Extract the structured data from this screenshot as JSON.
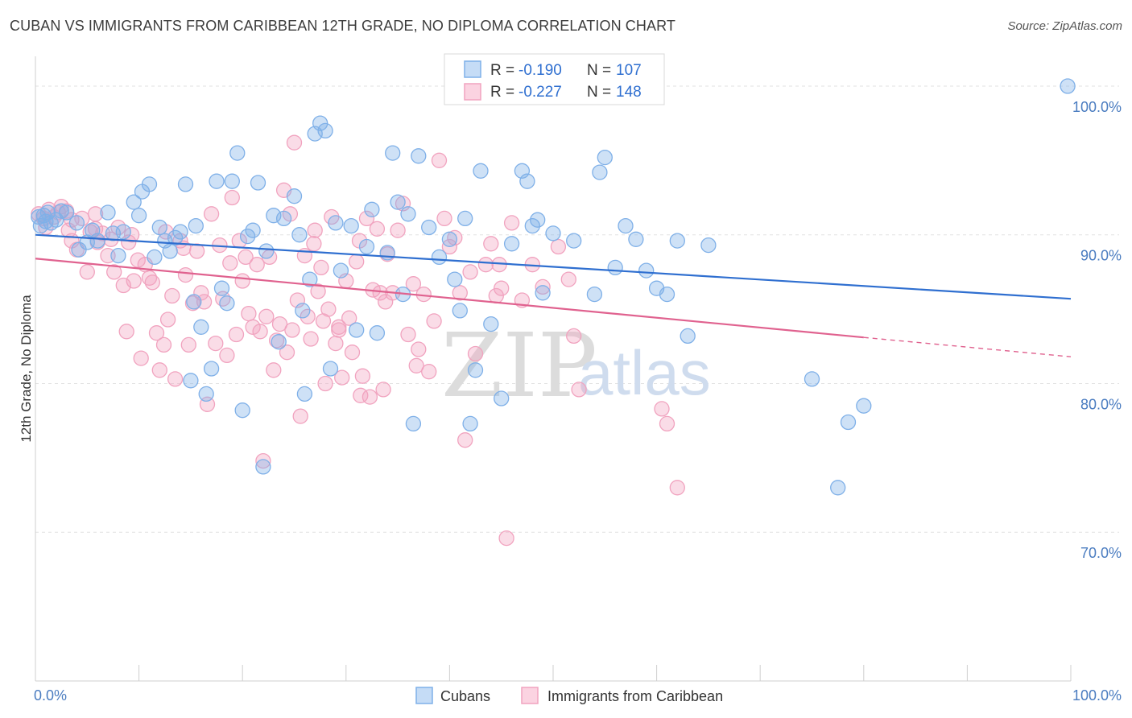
{
  "title": "CUBAN VS IMMIGRANTS FROM CARIBBEAN 12TH GRADE, NO DIPLOMA CORRELATION CHART",
  "source": "Source: ZipAtlas.com",
  "watermark": {
    "zip": "ZIP",
    "atlas": "atlas"
  },
  "colors": {
    "cubans": "#7fb0e8",
    "cubans_line": "#2f6fd0",
    "caribbean": "#f1a3bf",
    "caribbean_line": "#e0628f",
    "axis_text": "#4a7cc0"
  },
  "chart_data": {
    "type": "scatter",
    "xlabel": "",
    "ylabel": "12th Grade, No Diploma",
    "xlim": [
      0,
      100
    ],
    "ylim": [
      60,
      102
    ],
    "x_tick_labels": [
      {
        "value": 0,
        "label": "0.0%"
      },
      {
        "value": 100,
        "label": "100.0%"
      }
    ],
    "y_ticks": [
      {
        "value": 70,
        "label": "70.0%"
      },
      {
        "value": 80,
        "label": "80.0%"
      },
      {
        "value": 90,
        "label": "90.0%"
      },
      {
        "value": 100,
        "label": "100.0%"
      }
    ],
    "grid": true,
    "legend_stats": [
      {
        "r_label": "R = ",
        "r_value": "-0.190",
        "n_label": "N = ",
        "n_value": "107"
      },
      {
        "r_label": "R = ",
        "r_value": "-0.227",
        "n_label": "N = ",
        "n_value": "148"
      }
    ],
    "series": [
      {
        "name": "Cubans",
        "trend": {
          "x": [
            0,
            100
          ],
          "y": [
            90.0,
            85.7
          ]
        },
        "points": [
          [
            0.3,
            91.2
          ],
          [
            0.5,
            90.6
          ],
          [
            0.8,
            91.3
          ],
          [
            1.0,
            90.9
          ],
          [
            1.2,
            91.5
          ],
          [
            1.5,
            90.8
          ],
          [
            2.0,
            91.0
          ],
          [
            2.5,
            91.6
          ],
          [
            3.0,
            91.5
          ],
          [
            4.0,
            90.8
          ],
          [
            4.2,
            89.0
          ],
          [
            5.0,
            89.5
          ],
          [
            5.5,
            90.3
          ],
          [
            6.0,
            89.6
          ],
          [
            7.0,
            91.5
          ],
          [
            7.5,
            90.1
          ],
          [
            8.0,
            88.6
          ],
          [
            8.5,
            90.2
          ],
          [
            9.5,
            92.2
          ],
          [
            10.0,
            91.3
          ],
          [
            10.3,
            92.9
          ],
          [
            11.0,
            93.4
          ],
          [
            11.5,
            88.5
          ],
          [
            12.0,
            90.5
          ],
          [
            12.5,
            89.6
          ],
          [
            13.0,
            88.9
          ],
          [
            13.5,
            89.8
          ],
          [
            14.0,
            90.2
          ],
          [
            14.5,
            93.4
          ],
          [
            15.0,
            80.2
          ],
          [
            15.5,
            90.6
          ],
          [
            16.0,
            83.8
          ],
          [
            16.5,
            79.3
          ],
          [
            17.0,
            81.0
          ],
          [
            17.5,
            93.6
          ],
          [
            18.0,
            86.4
          ],
          [
            18.5,
            85.4
          ],
          [
            19.0,
            93.6
          ],
          [
            19.5,
            95.5
          ],
          [
            20.0,
            78.2
          ],
          [
            21.0,
            90.3
          ],
          [
            21.5,
            93.5
          ],
          [
            22.0,
            74.4
          ],
          [
            22.3,
            88.9
          ],
          [
            23.0,
            91.3
          ],
          [
            23.5,
            82.8
          ],
          [
            24.0,
            91.1
          ],
          [
            25.0,
            92.6
          ],
          [
            25.5,
            90.0
          ],
          [
            26.0,
            79.3
          ],
          [
            26.5,
            87.0
          ],
          [
            27.0,
            96.8
          ],
          [
            27.5,
            97.5
          ],
          [
            28.0,
            97.0
          ],
          [
            28.5,
            81.0
          ],
          [
            29.0,
            90.8
          ],
          [
            29.5,
            87.6
          ],
          [
            30.5,
            90.6
          ],
          [
            31.0,
            83.6
          ],
          [
            32.0,
            89.2
          ],
          [
            32.5,
            91.7
          ],
          [
            33.0,
            83.4
          ],
          [
            34.0,
            88.8
          ],
          [
            34.5,
            95.5
          ],
          [
            35.0,
            92.2
          ],
          [
            35.5,
            86.0
          ],
          [
            36.0,
            91.4
          ],
          [
            36.5,
            77.3
          ],
          [
            37.0,
            95.3
          ],
          [
            38.0,
            90.5
          ],
          [
            39.0,
            88.5
          ],
          [
            40.0,
            89.7
          ],
          [
            40.5,
            87.0
          ],
          [
            41.0,
            84.9
          ],
          [
            42.0,
            77.3
          ],
          [
            42.5,
            80.9
          ],
          [
            43.0,
            94.3
          ],
          [
            44.0,
            84.0
          ],
          [
            45.0,
            79.0
          ],
          [
            46.0,
            89.4
          ],
          [
            47.0,
            94.3
          ],
          [
            47.5,
            93.6
          ],
          [
            48.0,
            90.6
          ],
          [
            48.5,
            91.0
          ],
          [
            49.0,
            86.1
          ],
          [
            50.0,
            90.1
          ],
          [
            52.0,
            89.6
          ],
          [
            54.0,
            86.0
          ],
          [
            55.0,
            95.2
          ],
          [
            54.5,
            94.2
          ],
          [
            56.0,
            87.8
          ],
          [
            57.0,
            90.6
          ],
          [
            58.0,
            89.7
          ],
          [
            59.0,
            87.6
          ],
          [
            60.0,
            86.4
          ],
          [
            61.0,
            86.0
          ],
          [
            62.0,
            89.6
          ],
          [
            63.0,
            83.2
          ],
          [
            65.0,
            89.3
          ],
          [
            75.0,
            80.3
          ],
          [
            78.5,
            77.4
          ],
          [
            80.0,
            78.5
          ],
          [
            77.5,
            73.0
          ],
          [
            99.7,
            100.0
          ],
          [
            15.3,
            85.5
          ],
          [
            20.5,
            89.9
          ],
          [
            25.8,
            84.9
          ],
          [
            41.5,
            91.1
          ]
        ]
      },
      {
        "name": "Immigrants from Caribbean",
        "trend": {
          "x": [
            0,
            80
          ],
          "y": [
            88.4,
            83.1
          ]
        },
        "trend_dashed": {
          "x": [
            80,
            100
          ],
          "y": [
            83.1,
            81.8
          ]
        },
        "points": [
          [
            0.3,
            91.4
          ],
          [
            0.8,
            91.1
          ],
          [
            1.0,
            90.5
          ],
          [
            1.3,
            91.7
          ],
          [
            1.8,
            91.2
          ],
          [
            2.2,
            91.5
          ],
          [
            2.5,
            91.9
          ],
          [
            3.0,
            91.6
          ],
          [
            3.2,
            90.3
          ],
          [
            3.5,
            89.6
          ],
          [
            4.0,
            89.0
          ],
          [
            4.5,
            91.1
          ],
          [
            5.0,
            87.5
          ],
          [
            5.3,
            90.2
          ],
          [
            5.8,
            91.4
          ],
          [
            6.0,
            89.5
          ],
          [
            6.5,
            90.1
          ],
          [
            7.0,
            88.6
          ],
          [
            7.3,
            89.7
          ],
          [
            7.6,
            87.5
          ],
          [
            8.0,
            90.5
          ],
          [
            8.5,
            86.6
          ],
          [
            8.8,
            83.5
          ],
          [
            9.0,
            89.5
          ],
          [
            9.5,
            86.9
          ],
          [
            9.9,
            88.3
          ],
          [
            10.2,
            81.7
          ],
          [
            10.6,
            88.0
          ],
          [
            11.0,
            87.1
          ],
          [
            11.3,
            86.8
          ],
          [
            11.7,
            83.4
          ],
          [
            12.0,
            80.9
          ],
          [
            12.4,
            82.6
          ],
          [
            12.8,
            84.3
          ],
          [
            13.2,
            85.9
          ],
          [
            13.5,
            80.3
          ],
          [
            14.0,
            89.6
          ],
          [
            14.5,
            87.3
          ],
          [
            14.8,
            82.6
          ],
          [
            15.2,
            85.4
          ],
          [
            15.6,
            88.9
          ],
          [
            16.0,
            86.1
          ],
          [
            16.3,
            85.5
          ],
          [
            16.6,
            78.6
          ],
          [
            17.0,
            91.4
          ],
          [
            17.4,
            82.7
          ],
          [
            17.8,
            89.3
          ],
          [
            18.1,
            85.7
          ],
          [
            18.5,
            81.9
          ],
          [
            18.8,
            88.1
          ],
          [
            19.0,
            92.5
          ],
          [
            19.4,
            83.3
          ],
          [
            19.7,
            89.6
          ],
          [
            20.0,
            86.9
          ],
          [
            20.3,
            88.5
          ],
          [
            20.6,
            84.7
          ],
          [
            21.0,
            83.8
          ],
          [
            21.4,
            88.0
          ],
          [
            21.7,
            83.5
          ],
          [
            22.0,
            74.8
          ],
          [
            22.3,
            84.5
          ],
          [
            22.6,
            88.5
          ],
          [
            23.0,
            80.9
          ],
          [
            23.3,
            82.9
          ],
          [
            23.6,
            84.0
          ],
          [
            24.0,
            93.0
          ],
          [
            24.3,
            82.1
          ],
          [
            24.6,
            91.4
          ],
          [
            25.0,
            96.2
          ],
          [
            25.3,
            85.6
          ],
          [
            25.6,
            77.8
          ],
          [
            26.0,
            88.6
          ],
          [
            26.3,
            84.5
          ],
          [
            26.6,
            83.0
          ],
          [
            27.0,
            90.3
          ],
          [
            27.3,
            86.2
          ],
          [
            27.6,
            87.8
          ],
          [
            28.0,
            80.0
          ],
          [
            28.3,
            85.0
          ],
          [
            28.6,
            91.2
          ],
          [
            29.0,
            82.7
          ],
          [
            29.3,
            83.6
          ],
          [
            29.6,
            80.4
          ],
          [
            30.0,
            86.9
          ],
          [
            30.3,
            84.4
          ],
          [
            30.6,
            82.1
          ],
          [
            31.0,
            88.2
          ],
          [
            31.3,
            89.6
          ],
          [
            31.6,
            80.5
          ],
          [
            32.0,
            91.1
          ],
          [
            32.3,
            79.1
          ],
          [
            32.6,
            86.3
          ],
          [
            33.0,
            90.4
          ],
          [
            33.3,
            86.1
          ],
          [
            33.6,
            79.6
          ],
          [
            34.0,
            88.7
          ],
          [
            34.5,
            86.1
          ],
          [
            35.0,
            90.3
          ],
          [
            35.5,
            92.1
          ],
          [
            36.0,
            83.3
          ],
          [
            36.5,
            86.7
          ],
          [
            37.0,
            82.3
          ],
          [
            37.5,
            86.0
          ],
          [
            38.0,
            80.8
          ],
          [
            38.5,
            84.2
          ],
          [
            39.0,
            95.0
          ],
          [
            39.5,
            91.1
          ],
          [
            40.0,
            89.2
          ],
          [
            40.5,
            89.8
          ],
          [
            41.0,
            86.1
          ],
          [
            41.5,
            76.2
          ],
          [
            42.0,
            87.5
          ],
          [
            42.5,
            82.0
          ],
          [
            43.5,
            88.0
          ],
          [
            44.0,
            89.4
          ],
          [
            44.5,
            85.9
          ],
          [
            45.0,
            86.4
          ],
          [
            46.0,
            90.8
          ],
          [
            47.0,
            85.6
          ],
          [
            47.5,
            100.0
          ],
          [
            48.0,
            88.0
          ],
          [
            49.0,
            86.5
          ],
          [
            50.5,
            89.2
          ],
          [
            51.5,
            87.0
          ],
          [
            52.0,
            83.2
          ],
          [
            60.5,
            78.3
          ],
          [
            61.0,
            77.3
          ],
          [
            62.0,
            73.0
          ],
          [
            45.5,
            69.6
          ],
          [
            29.3,
            83.8
          ],
          [
            24.8,
            83.6
          ],
          [
            36.8,
            81.2
          ],
          [
            27.8,
            84.2
          ],
          [
            52.5,
            79.6
          ],
          [
            12.6,
            90.2
          ],
          [
            3.5,
            91.0
          ],
          [
            5.8,
            90.4
          ],
          [
            9.3,
            90.0
          ],
          [
            14.3,
            89.1
          ],
          [
            31.4,
            79.2
          ],
          [
            33.8,
            85.5
          ],
          [
            44.8,
            88.0
          ],
          [
            26.9,
            89.4
          ]
        ]
      }
    ]
  }
}
